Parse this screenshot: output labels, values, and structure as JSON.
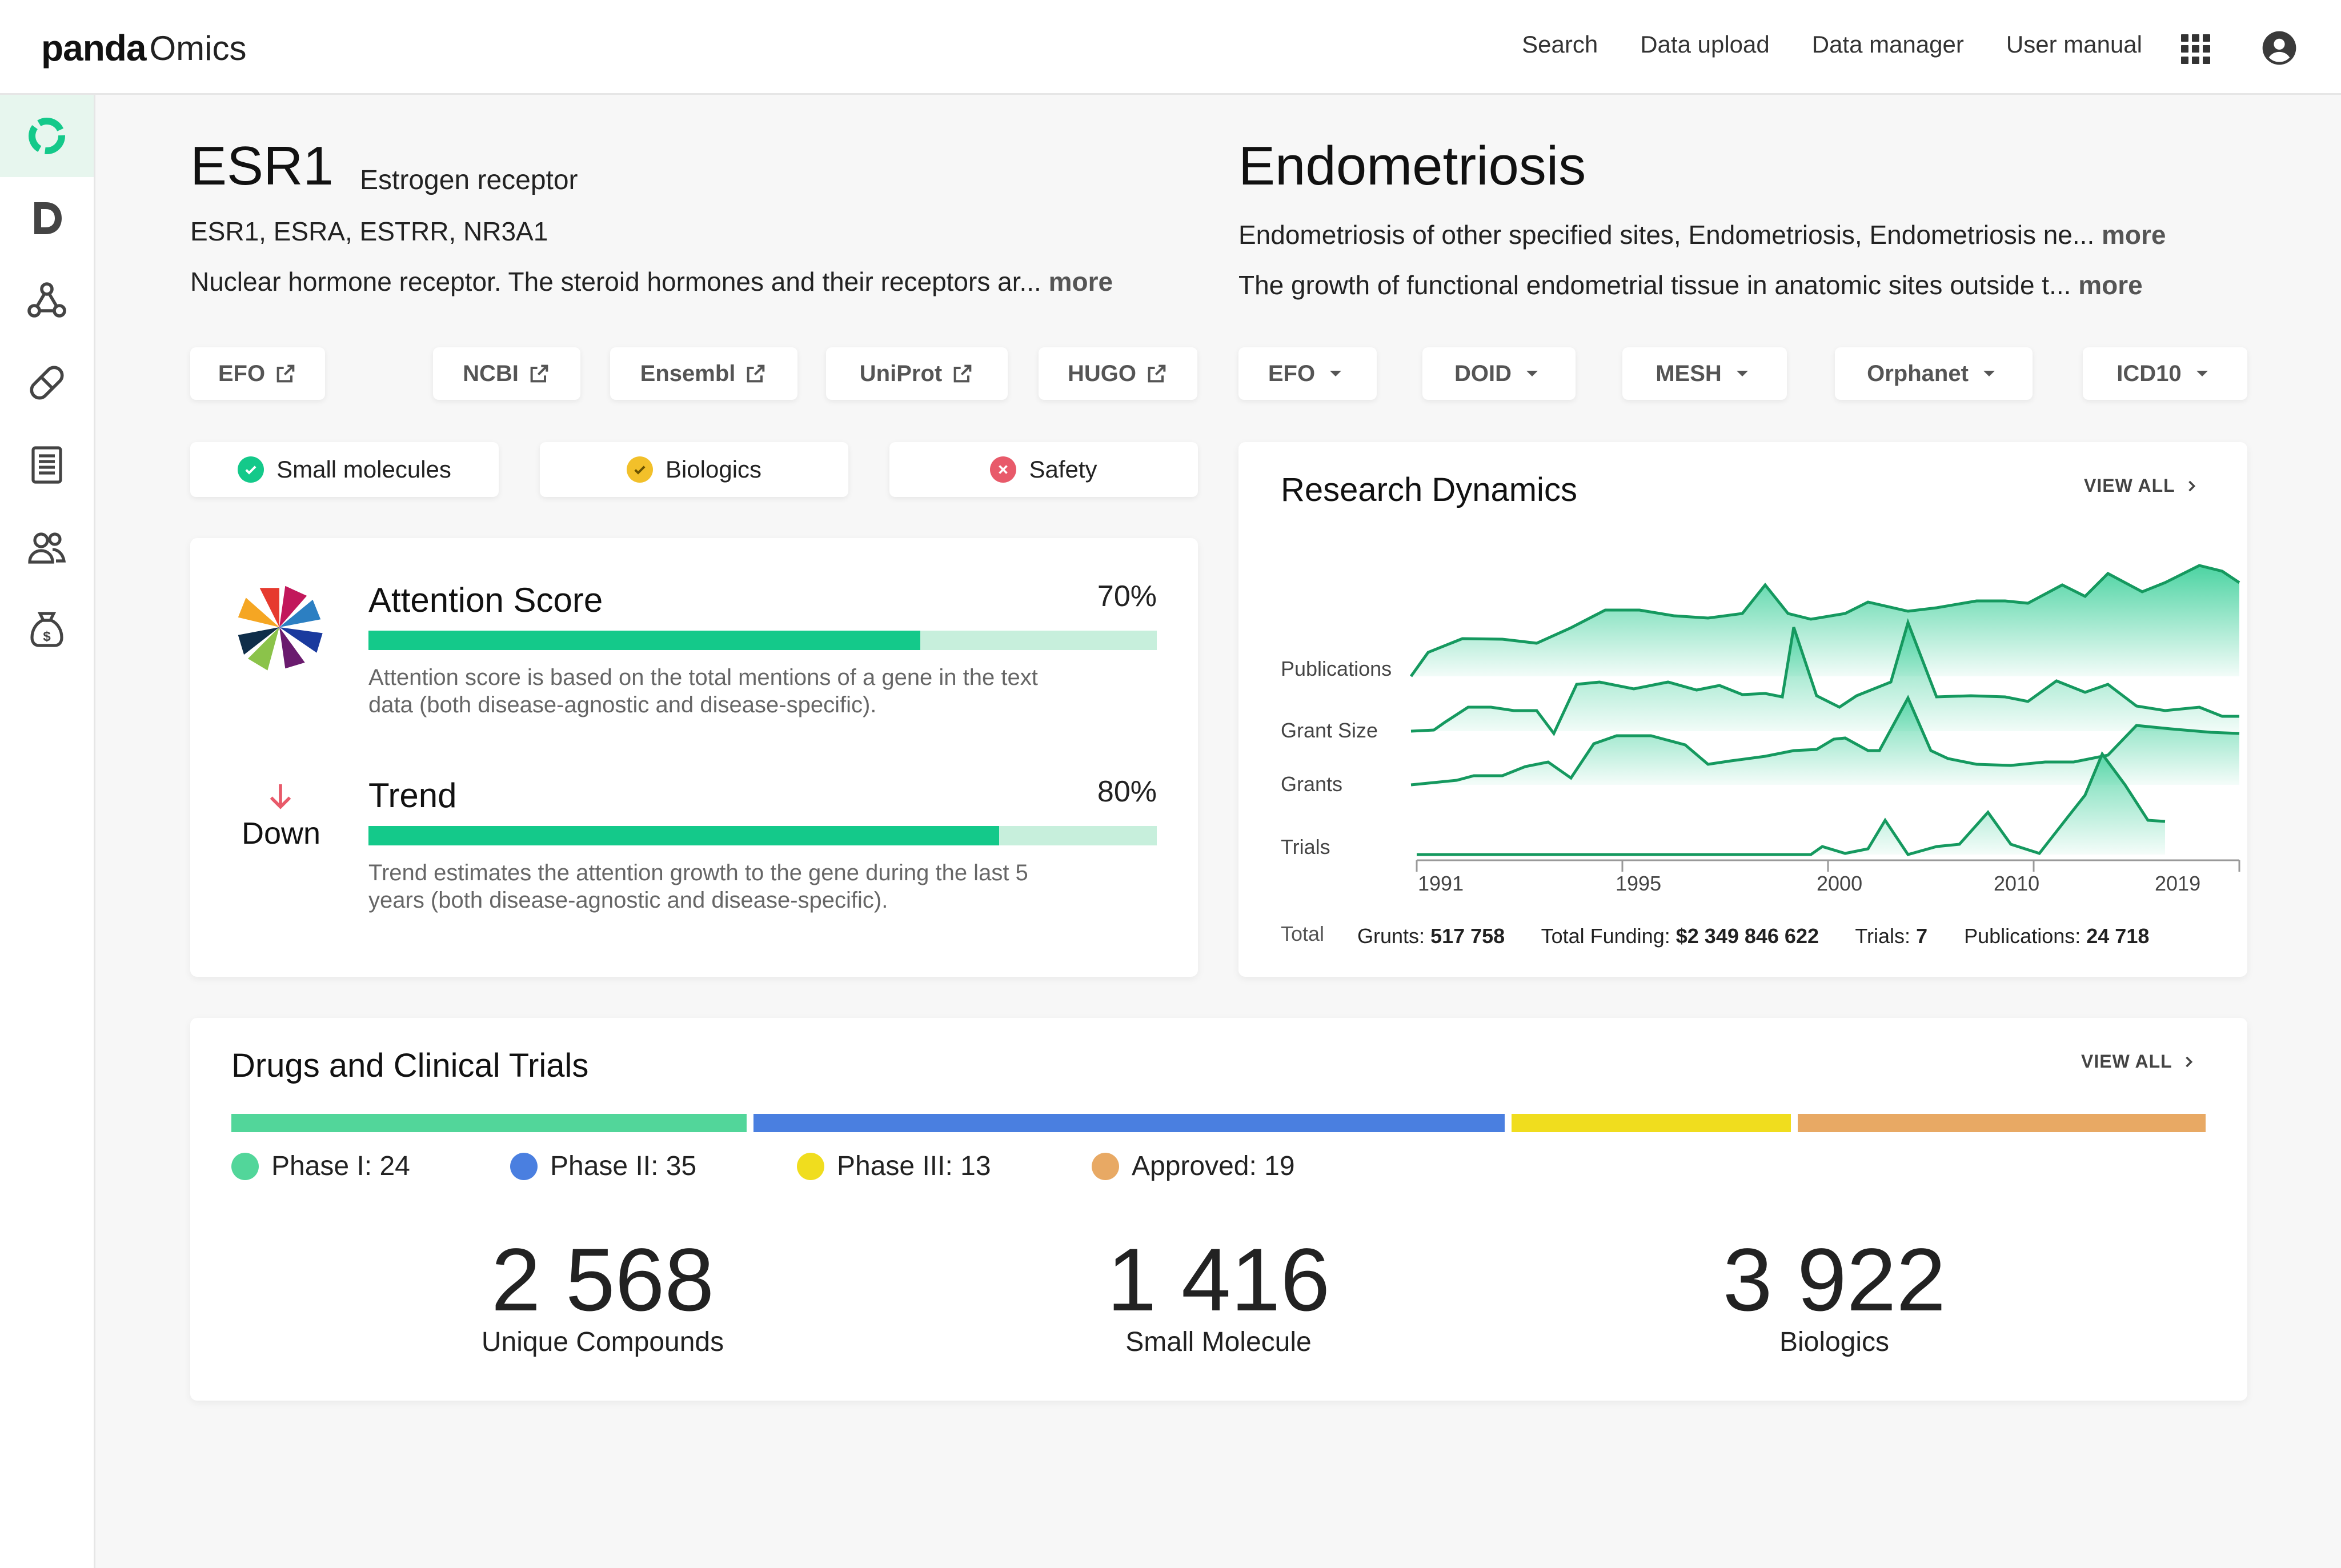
{
  "app": {
    "logo_panda": "panda",
    "logo_omics": "Omics"
  },
  "nav": [
    "Search",
    "Data upload",
    "Data manager",
    "User manual"
  ],
  "icons": {
    "apps": "apps-grid-icon",
    "user": "account-circle-icon",
    "sidebar": [
      "omics-circle-icon",
      "d-letter-icon",
      "network-icon",
      "pill-icon",
      "document-icon",
      "people-icon",
      "money-bag-icon"
    ]
  },
  "gene": {
    "symbol": "ESR1",
    "name": "Estrogen receptor",
    "aliases": "ESR1, ESRA, ESTRR, NR3A1",
    "description": "Nuclear hormone receptor. The steroid hormones and their receptors ar...",
    "more": "more",
    "links": [
      "EFO",
      "NCBI",
      "Ensembl",
      "UniProt",
      "HUGO"
    ]
  },
  "disease": {
    "title": "Endometriosis",
    "synonyms": "Endometriosis of other specified sites, Endometriosis, Endometriosis ne...",
    "description": "The growth of functional endometrial tissue in anatomic sites outside t...",
    "more": "more",
    "dropdowns": [
      "EFO",
      "DOID",
      "MESH",
      "Orphanet",
      "ICD10"
    ]
  },
  "modalities": [
    {
      "label": "Small molecules",
      "status": "ok",
      "color": "#14c98a"
    },
    {
      "label": "Biologics",
      "status": "warn",
      "color": "#f2c02a"
    },
    {
      "label": "Safety",
      "status": "bad",
      "color": "#e85a6a"
    }
  ],
  "attention": {
    "title": "Attention Score",
    "percent_label": "70%",
    "value": 70,
    "desc1": "Attention score is based on the total mentions of a gene in the text",
    "desc2": "data (both disease-agnostic and disease-specific)."
  },
  "trend": {
    "direction": "Down",
    "title": "Trend",
    "percent_label": "80%",
    "value": 80,
    "desc1": "Trend estimates the attention growth to the gene during the last 5",
    "desc2": "years (both disease-agnostic and disease-specific)."
  },
  "research": {
    "title": "Research Dynamics",
    "view_all": "VIEW ALL",
    "rows": [
      "Publications",
      "Grant Size",
      "Grants",
      "Trials"
    ],
    "x_ticks": [
      "1991",
      "1995",
      "2000",
      "2010",
      "2019"
    ],
    "total_label": "Total",
    "totals": [
      {
        "label": "Grunts:",
        "value": "517 758"
      },
      {
        "label": "Total Funding:",
        "value": "$2 349 846 622"
      },
      {
        "label": "Trials:",
        "value": "7"
      },
      {
        "label": "Publications:",
        "value": "24 718"
      }
    ]
  },
  "drugs": {
    "title": "Drugs and Clinical Trials",
    "view_all": "VIEW ALL",
    "phases": [
      {
        "label": "Phase I: 24",
        "value": 24,
        "color": "#52d69a"
      },
      {
        "label": "Phase II: 35",
        "value": 35,
        "color": "#4a7fe0"
      },
      {
        "label": "Phase III: 13",
        "value": 13,
        "color": "#f0dd1e"
      },
      {
        "label": "Approved: 19",
        "value": 19,
        "color": "#e8a964"
      }
    ],
    "stats": [
      {
        "value": "2 568",
        "label": "Unique Compounds"
      },
      {
        "value": "1 416",
        "label": "Small Molecule"
      },
      {
        "value": "3 922",
        "label": "Biologics"
      }
    ]
  }
}
